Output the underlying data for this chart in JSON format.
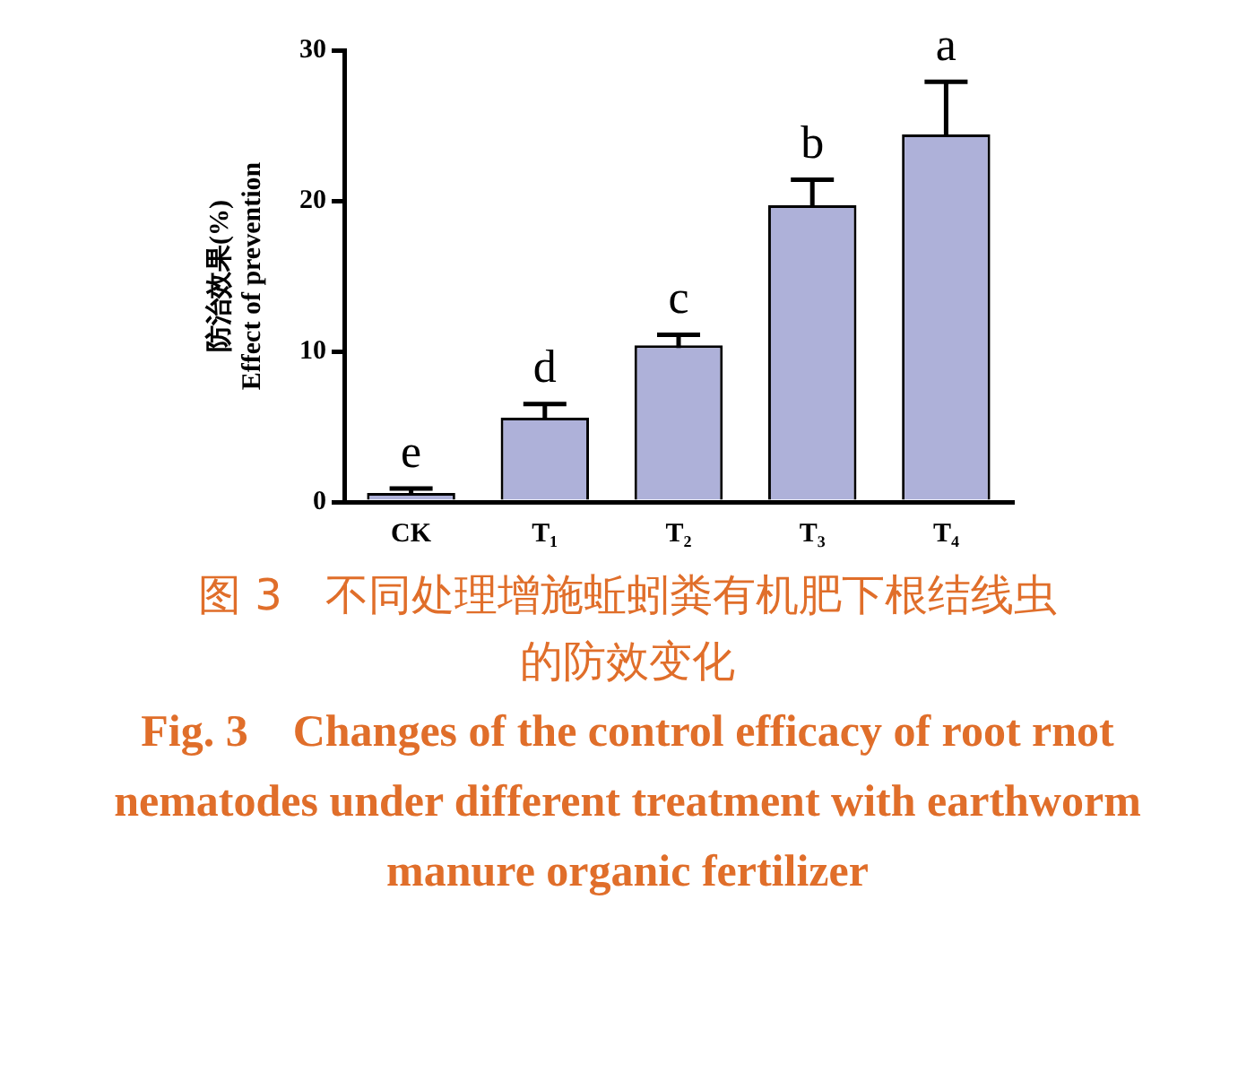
{
  "chart_data": {
    "type": "bar",
    "title": "图 3　不同处理增施蚯蚓粪有机肥下根结线虫的防效变化",
    "subtitle": "Fig. 3　Changes of the control efficacy of root rnot nematodes under different treatment with earthworm manure organic fertilizer",
    "ylabel": "防治效果(%)\nEffect of prevention",
    "categories": [
      "CK",
      "T₁",
      "T₂",
      "T₃",
      "T₄"
    ],
    "values": [
      0.6,
      5.6,
      10.4,
      19.7,
      24.4
    ],
    "errors": [
      0.3,
      0.9,
      0.7,
      1.7,
      3.5
    ],
    "color": "#aeb1d9",
    "ylim": [
      0,
      30
    ],
    "yticks": [
      0,
      10,
      20,
      30
    ],
    "grid": false,
    "legend": false,
    "annotations": [
      {
        "text": "e",
        "x": "CK",
        "y": 0.9
      },
      {
        "text": "d",
        "x": "T₁",
        "y": 6.5
      },
      {
        "text": "c",
        "x": "T₂",
        "y": 11.1
      },
      {
        "text": "b",
        "x": "T₃",
        "y": 21.4
      },
      {
        "text": "a",
        "x": "T₄",
        "y": 27.9
      }
    ]
  }
}
